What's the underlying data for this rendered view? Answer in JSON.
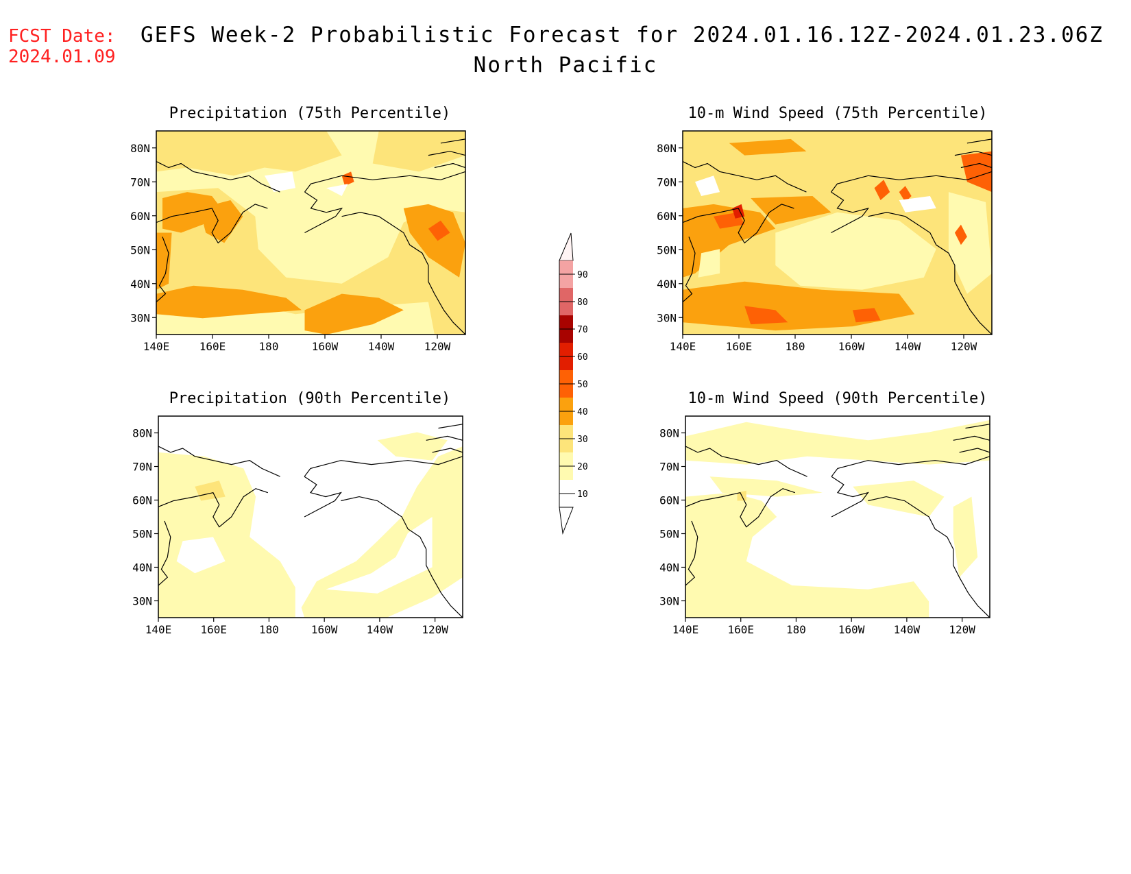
{
  "forecast_date": {
    "label": "FCST Date:",
    "value": "2024.01.09"
  },
  "title": "GEFS Week-2 Probabilistic Forecast for 2024.01.16.12Z-2024.01.23.06Z",
  "subtitle": "North Pacific",
  "panels": [
    {
      "id": "precip75",
      "title": "Precipitation (75th Percentile)"
    },
    {
      "id": "wind75",
      "title": "10-m Wind Speed (75th Percentile)"
    },
    {
      "id": "precip90",
      "title": "Precipitation (90th Percentile)"
    },
    {
      "id": "wind90",
      "title": "10-m Wind Speed (90th Percentile)"
    }
  ],
  "lat_ticks": [
    "80N",
    "70N",
    "60N",
    "50N",
    "40N",
    "30N"
  ],
  "lon_ticks": [
    "140E",
    "160E",
    "180",
    "160W",
    "140W",
    "120W"
  ],
  "colorbar": {
    "levels": [
      "10",
      "20",
      "30",
      "40",
      "50",
      "60",
      "70",
      "80",
      "90"
    ],
    "colors": [
      "#fffab0",
      "#fde47a",
      "#fba10e",
      "#fe6105",
      "#e21e00",
      "#a80300",
      "#e06666",
      "#f4a3a3",
      "#fde5e5"
    ]
  }
}
